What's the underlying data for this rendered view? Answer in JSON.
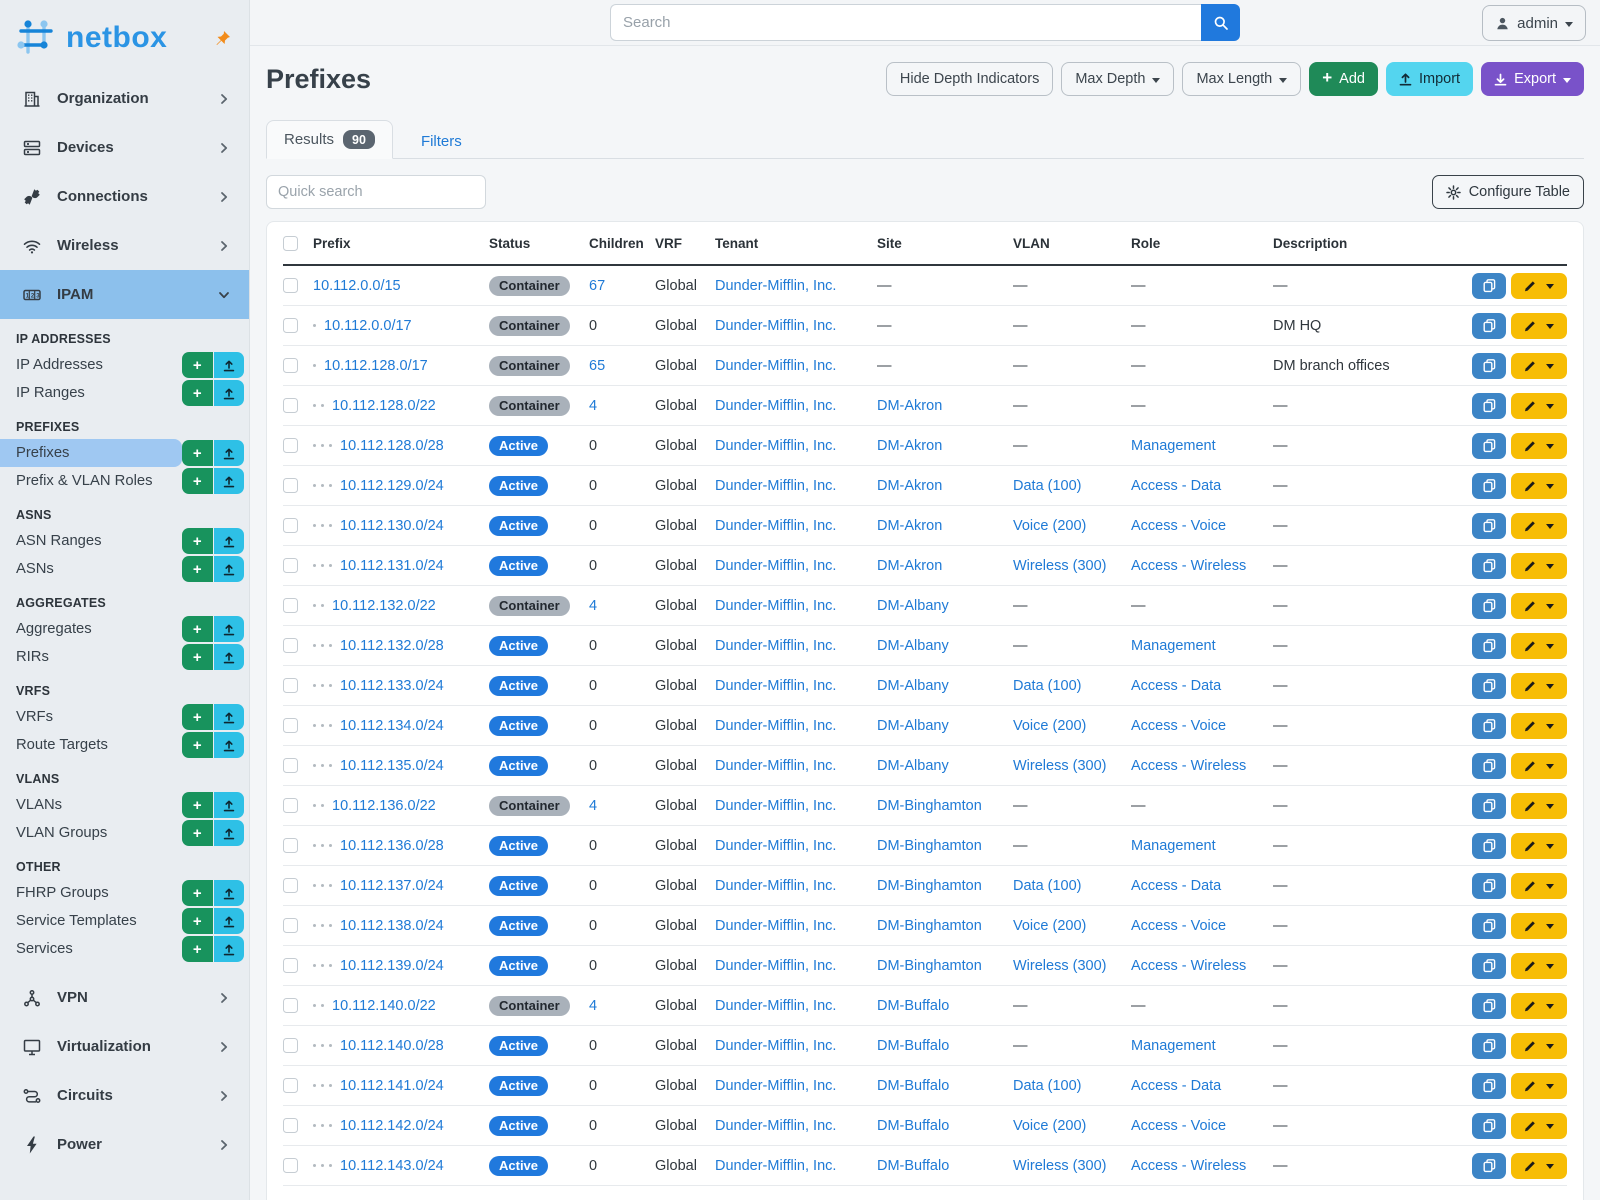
{
  "brand": {
    "name": "netbox"
  },
  "topbar": {
    "search_placeholder": "Search",
    "user": "admin"
  },
  "sidebar": {
    "top_items": [
      {
        "label": "Organization",
        "icon": "building-icon"
      },
      {
        "label": "Devices",
        "icon": "server-icon"
      },
      {
        "label": "Connections",
        "icon": "plug-icon"
      },
      {
        "label": "Wireless",
        "icon": "wifi-icon"
      }
    ],
    "active_group": {
      "label": "IPAM",
      "icon": "counter-icon"
    },
    "sections": [
      {
        "title": "IP ADDRESSES",
        "items": [
          {
            "label": "IP Addresses"
          },
          {
            "label": "IP Ranges"
          }
        ]
      },
      {
        "title": "PREFIXES",
        "items": [
          {
            "label": "Prefixes",
            "active": true
          },
          {
            "label": "Prefix & VLAN Roles"
          }
        ]
      },
      {
        "title": "ASNS",
        "items": [
          {
            "label": "ASN Ranges"
          },
          {
            "label": "ASNs"
          }
        ]
      },
      {
        "title": "AGGREGATES",
        "items": [
          {
            "label": "Aggregates"
          },
          {
            "label": "RIRs"
          }
        ]
      },
      {
        "title": "VRFS",
        "items": [
          {
            "label": "VRFs"
          },
          {
            "label": "Route Targets"
          }
        ]
      },
      {
        "title": "VLANS",
        "items": [
          {
            "label": "VLANs"
          },
          {
            "label": "VLAN Groups"
          }
        ]
      },
      {
        "title": "OTHER",
        "items": [
          {
            "label": "FHRP Groups"
          },
          {
            "label": "Service Templates"
          },
          {
            "label": "Services"
          }
        ]
      }
    ],
    "bottom_items": [
      {
        "label": "VPN",
        "icon": "graph-icon"
      },
      {
        "label": "Virtualization",
        "icon": "monitor-icon"
      },
      {
        "label": "Circuits",
        "icon": "transit-icon"
      },
      {
        "label": "Power",
        "icon": "bolt-icon"
      }
    ]
  },
  "page": {
    "title": "Prefixes",
    "hide_depth_label": "Hide Depth Indicators",
    "max_depth_label": "Max Depth",
    "max_length_label": "Max Length",
    "add_label": "Add",
    "import_label": "Import",
    "export_label": "Export",
    "results_tab": "Results",
    "results_count": "90",
    "filters_tab": "Filters",
    "quick_search_placeholder": "Quick search",
    "configure_table_label": "Configure Table"
  },
  "table": {
    "columns": [
      "Prefix",
      "Status",
      "Children",
      "VRF",
      "Tenant",
      "Site",
      "VLAN",
      "Role",
      "Description"
    ],
    "rows": [
      {
        "depth": 0,
        "prefix": "10.112.0.0/15",
        "status": "Container",
        "children": "67",
        "children_link": true,
        "vrf": "Global",
        "tenant": "Dunder-Mifflin, Inc.",
        "site": "—",
        "vlan": "—",
        "role": "—",
        "description": "—"
      },
      {
        "depth": 1,
        "prefix": "10.112.0.0/17",
        "status": "Container",
        "children": "0",
        "children_link": false,
        "vrf": "Global",
        "tenant": "Dunder-Mifflin, Inc.",
        "site": "—",
        "vlan": "—",
        "role": "—",
        "description": "DM HQ"
      },
      {
        "depth": 1,
        "prefix": "10.112.128.0/17",
        "status": "Container",
        "children": "65",
        "children_link": true,
        "vrf": "Global",
        "tenant": "Dunder-Mifflin, Inc.",
        "site": "—",
        "vlan": "—",
        "role": "—",
        "description": "DM branch offices"
      },
      {
        "depth": 2,
        "prefix": "10.112.128.0/22",
        "status": "Container",
        "children": "4",
        "children_link": true,
        "vrf": "Global",
        "tenant": "Dunder-Mifflin, Inc.",
        "site": "DM-Akron",
        "vlan": "—",
        "role": "—",
        "description": "—"
      },
      {
        "depth": 3,
        "prefix": "10.112.128.0/28",
        "status": "Active",
        "children": "0",
        "children_link": false,
        "vrf": "Global",
        "tenant": "Dunder-Mifflin, Inc.",
        "site": "DM-Akron",
        "vlan": "—",
        "role": "Management",
        "description": "—"
      },
      {
        "depth": 3,
        "prefix": "10.112.129.0/24",
        "status": "Active",
        "children": "0",
        "children_link": false,
        "vrf": "Global",
        "tenant": "Dunder-Mifflin, Inc.",
        "site": "DM-Akron",
        "vlan": "Data (100)",
        "role": "Access - Data",
        "description": "—"
      },
      {
        "depth": 3,
        "prefix": "10.112.130.0/24",
        "status": "Active",
        "children": "0",
        "children_link": false,
        "vrf": "Global",
        "tenant": "Dunder-Mifflin, Inc.",
        "site": "DM-Akron",
        "vlan": "Voice (200)",
        "role": "Access - Voice",
        "description": "—"
      },
      {
        "depth": 3,
        "prefix": "10.112.131.0/24",
        "status": "Active",
        "children": "0",
        "children_link": false,
        "vrf": "Global",
        "tenant": "Dunder-Mifflin, Inc.",
        "site": "DM-Akron",
        "vlan": "Wireless (300)",
        "role": "Access - Wireless",
        "description": "—"
      },
      {
        "depth": 2,
        "prefix": "10.112.132.0/22",
        "status": "Container",
        "children": "4",
        "children_link": true,
        "vrf": "Global",
        "tenant": "Dunder-Mifflin, Inc.",
        "site": "DM-Albany",
        "vlan": "—",
        "role": "—",
        "description": "—"
      },
      {
        "depth": 3,
        "prefix": "10.112.132.0/28",
        "status": "Active",
        "children": "0",
        "children_link": false,
        "vrf": "Global",
        "tenant": "Dunder-Mifflin, Inc.",
        "site": "DM-Albany",
        "vlan": "—",
        "role": "Management",
        "description": "—"
      },
      {
        "depth": 3,
        "prefix": "10.112.133.0/24",
        "status": "Active",
        "children": "0",
        "children_link": false,
        "vrf": "Global",
        "tenant": "Dunder-Mifflin, Inc.",
        "site": "DM-Albany",
        "vlan": "Data (100)",
        "role": "Access - Data",
        "description": "—"
      },
      {
        "depth": 3,
        "prefix": "10.112.134.0/24",
        "status": "Active",
        "children": "0",
        "children_link": false,
        "vrf": "Global",
        "tenant": "Dunder-Mifflin, Inc.",
        "site": "DM-Albany",
        "vlan": "Voice (200)",
        "role": "Access - Voice",
        "description": "—"
      },
      {
        "depth": 3,
        "prefix": "10.112.135.0/24",
        "status": "Active",
        "children": "0",
        "children_link": false,
        "vrf": "Global",
        "tenant": "Dunder-Mifflin, Inc.",
        "site": "DM-Albany",
        "vlan": "Wireless (300)",
        "role": "Access - Wireless",
        "description": "—"
      },
      {
        "depth": 2,
        "prefix": "10.112.136.0/22",
        "status": "Container",
        "children": "4",
        "children_link": true,
        "vrf": "Global",
        "tenant": "Dunder-Mifflin, Inc.",
        "site": "DM-Binghamton",
        "vlan": "—",
        "role": "—",
        "description": "—"
      },
      {
        "depth": 3,
        "prefix": "10.112.136.0/28",
        "status": "Active",
        "children": "0",
        "children_link": false,
        "vrf": "Global",
        "tenant": "Dunder-Mifflin, Inc.",
        "site": "DM-Binghamton",
        "vlan": "—",
        "role": "Management",
        "description": "—"
      },
      {
        "depth": 3,
        "prefix": "10.112.137.0/24",
        "status": "Active",
        "children": "0",
        "children_link": false,
        "vrf": "Global",
        "tenant": "Dunder-Mifflin, Inc.",
        "site": "DM-Binghamton",
        "vlan": "Data (100)",
        "role": "Access - Data",
        "description": "—"
      },
      {
        "depth": 3,
        "prefix": "10.112.138.0/24",
        "status": "Active",
        "children": "0",
        "children_link": false,
        "vrf": "Global",
        "tenant": "Dunder-Mifflin, Inc.",
        "site": "DM-Binghamton",
        "vlan": "Voice (200)",
        "role": "Access - Voice",
        "description": "—"
      },
      {
        "depth": 3,
        "prefix": "10.112.139.0/24",
        "status": "Active",
        "children": "0",
        "children_link": false,
        "vrf": "Global",
        "tenant": "Dunder-Mifflin, Inc.",
        "site": "DM-Binghamton",
        "vlan": "Wireless (300)",
        "role": "Access - Wireless",
        "description": "—"
      },
      {
        "depth": 2,
        "prefix": "10.112.140.0/22",
        "status": "Container",
        "children": "4",
        "children_link": true,
        "vrf": "Global",
        "tenant": "Dunder-Mifflin, Inc.",
        "site": "DM-Buffalo",
        "vlan": "—",
        "role": "—",
        "description": "—"
      },
      {
        "depth": 3,
        "prefix": "10.112.140.0/28",
        "status": "Active",
        "children": "0",
        "children_link": false,
        "vrf": "Global",
        "tenant": "Dunder-Mifflin, Inc.",
        "site": "DM-Buffalo",
        "vlan": "—",
        "role": "Management",
        "description": "—"
      },
      {
        "depth": 3,
        "prefix": "10.112.141.0/24",
        "status": "Active",
        "children": "0",
        "children_link": false,
        "vrf": "Global",
        "tenant": "Dunder-Mifflin, Inc.",
        "site": "DM-Buffalo",
        "vlan": "Data (100)",
        "role": "Access - Data",
        "description": "—"
      },
      {
        "depth": 3,
        "prefix": "10.112.142.0/24",
        "status": "Active",
        "children": "0",
        "children_link": false,
        "vrf": "Global",
        "tenant": "Dunder-Mifflin, Inc.",
        "site": "DM-Buffalo",
        "vlan": "Voice (200)",
        "role": "Access - Voice",
        "description": "—"
      },
      {
        "depth": 3,
        "prefix": "10.112.143.0/24",
        "status": "Active",
        "children": "0",
        "children_link": false,
        "vrf": "Global",
        "tenant": "Dunder-Mifflin, Inc.",
        "site": "DM-Buffalo",
        "vlan": "Wireless (300)",
        "role": "Access - Wireless",
        "description": "—"
      }
    ]
  },
  "colors": {
    "accent_blue": "#2079dd",
    "link_blue": "#1f7ad6",
    "badge_gray": "#a9b1ba",
    "green": "#1f8a58",
    "cyan": "#54d5ef",
    "purple": "#7952c9",
    "edit_yellow": "#f7bd05",
    "copy_blue": "#3d85c6",
    "sidebar_active": "#8cc0ec",
    "logo_blue": "#2b94e4",
    "pin_orange": "#f28c1b"
  }
}
